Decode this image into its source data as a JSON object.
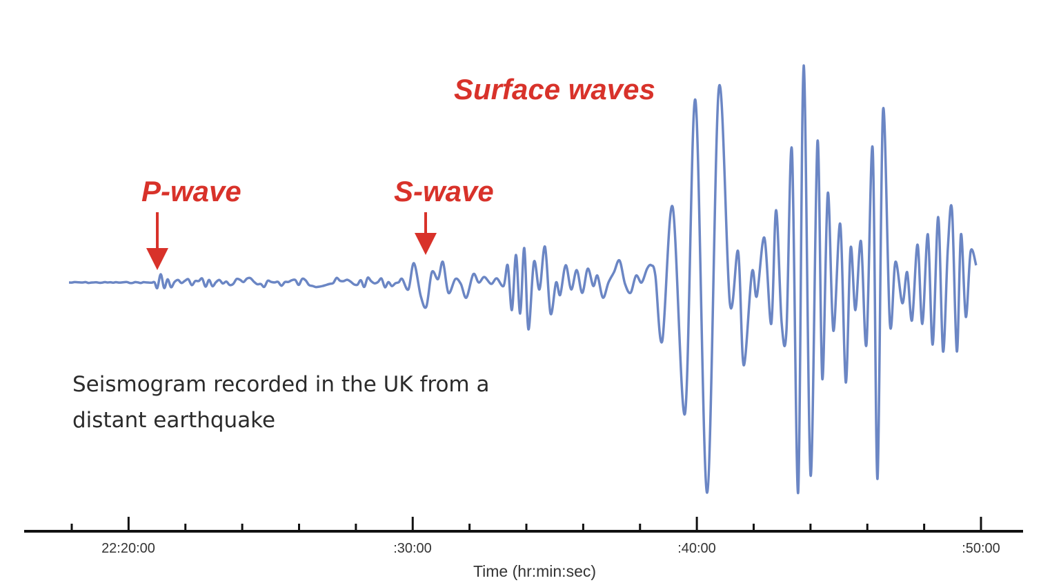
{
  "annotations": {
    "p_wave": "P-wave",
    "s_wave": "S-wave",
    "surface_waves": "Surface waves"
  },
  "caption": [
    "Seismogram recorded in the UK from a",
    "distant earthquake"
  ],
  "x_axis": {
    "title": "Time (hr:min:sec)",
    "tick_labels": [
      "22:20:00",
      ":30:00",
      ":40:00",
      ":50:00"
    ]
  }
}
